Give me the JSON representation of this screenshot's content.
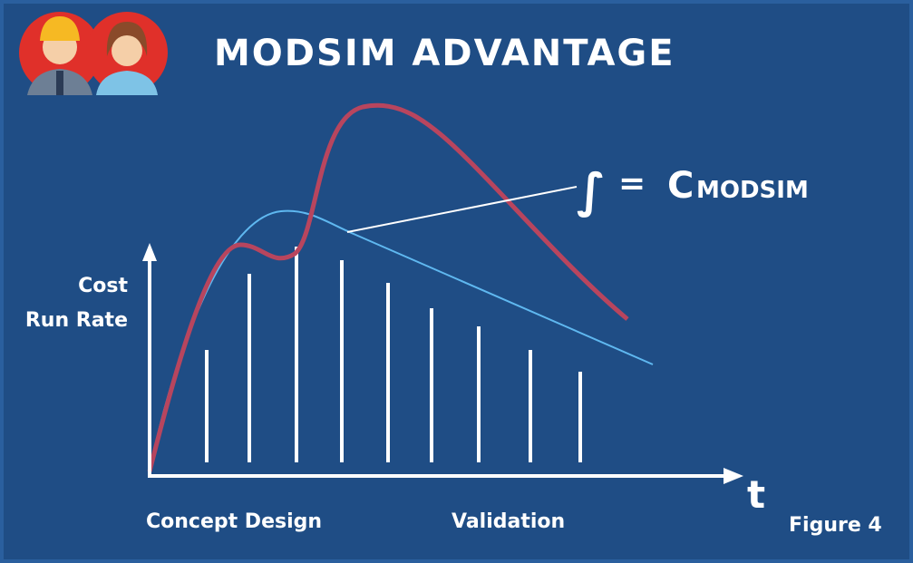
{
  "title": "MODSIM ADVANTAGE",
  "y_axis_label": [
    "Cost",
    "Run Rate"
  ],
  "x_axis_label": "t",
  "formula": {
    "integral": "∫",
    "equals": "=",
    "symbol": "C",
    "subscript": "MODSIM"
  },
  "phases": [
    "Concept Design",
    "Validation"
  ],
  "caption": "Figure 4"
}
